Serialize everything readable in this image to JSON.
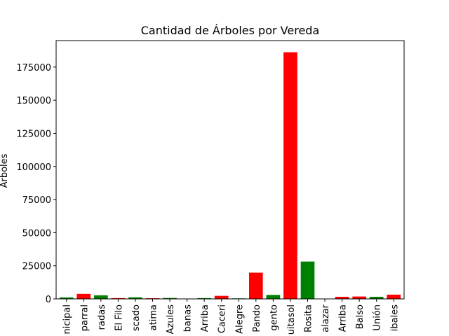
{
  "chart_data": {
    "type": "bar",
    "title": "Cantidad de Árboles por Vereda",
    "xlabel": "",
    "ylabel": "Árboles",
    "ylim": [
      0,
      195000
    ],
    "yticks": [
      0,
      25000,
      50000,
      75000,
      100000,
      125000,
      150000,
      175000
    ],
    "grid": false,
    "categories": [
      "nicipal",
      "parral",
      "radas",
      "El Filo",
      "scado",
      "atima",
      "Azules",
      "banas",
      "Arriba",
      "Caceri",
      "Alegre",
      "Pando",
      "gento",
      "uitasol",
      "Rosita",
      "alazar",
      "Arriba",
      "Balso",
      "Unión",
      "ibales"
    ],
    "values": [
      1100,
      3800,
      2700,
      600,
      1200,
      500,
      700,
      0,
      600,
      2300,
      400,
      19800,
      3000,
      186200,
      28200,
      0,
      1600,
      1800,
      1600,
      3200
    ],
    "colors": [
      "#008000",
      "#ff0000",
      "#008000",
      "#ff0000",
      "#008000",
      "#ff0000",
      "#008000",
      "#ff0000",
      "#008000",
      "#ff0000",
      "#008000",
      "#ff0000",
      "#008000",
      "#ff0000",
      "#008000",
      "#ff0000",
      "#ff0000",
      "#ff0000",
      "#008000",
      "#ff0000"
    ]
  }
}
